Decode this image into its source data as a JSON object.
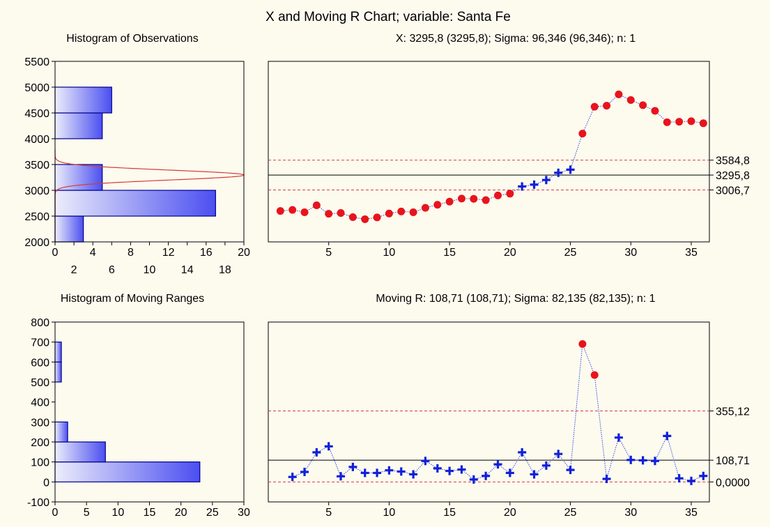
{
  "colors": {
    "background": "#fdfaee",
    "bar_fill_light": "#ecedfb",
    "bar_fill_dark": "#4b4ff0",
    "bar_stroke": "#00008b",
    "out_of_control": "#e8141c",
    "in_control": "#1020d8",
    "connector": "#3048e8",
    "control_limit": "#d04040",
    "center_line": "#000000",
    "density_curve": "#d43c3c"
  },
  "title": "X and Moving R Chart; variable:  Santa Fe",
  "chart_data": [
    {
      "type": "bar",
      "orientation": "horizontal",
      "title": "Histogram of Observations",
      "bins": [
        {
          "from": 2000,
          "to": 2500,
          "count": 3
        },
        {
          "from": 2500,
          "to": 3000,
          "count": 17
        },
        {
          "from": 3000,
          "to": 3500,
          "count": 5
        },
        {
          "from": 3500,
          "to": 4000,
          "count": 0
        },
        {
          "from": 4000,
          "to": 4500,
          "count": 5
        },
        {
          "from": 4500,
          "to": 5000,
          "count": 6
        },
        {
          "from": 5000,
          "to": 5500,
          "count": 0
        }
      ],
      "ylim": [
        2000,
        5500
      ],
      "y_ticks": [
        "2000",
        "2500",
        "3000",
        "3500",
        "4000",
        "4500",
        "5000",
        "5500"
      ],
      "xlim": [
        0,
        20
      ],
      "x_ticks_top_row": [
        "0",
        "4",
        "8",
        "12",
        "16",
        "20"
      ],
      "x_ticks_bottom_row": [
        "2",
        "6",
        "10",
        "14",
        "18"
      ],
      "density_curve": {
        "mean": 3295.8,
        "sigma": 96.346,
        "peak_count": 20
      }
    },
    {
      "type": "line",
      "title": "X: 3295,8 (3295,8); Sigma: 96,346 (96,346); n: 1",
      "xlim": [
        0,
        36.5
      ],
      "ylim": [
        2000,
        5500
      ],
      "x_ticks": [
        "5",
        "10",
        "15",
        "20",
        "25",
        "30",
        "35"
      ],
      "limits": [
        {
          "label": "3584,8",
          "value": 3584.8,
          "style": "dashed"
        },
        {
          "label": "3295,8",
          "value": 3295.8,
          "style": "solid"
        },
        {
          "label": "3006,7",
          "value": 3006.7,
          "style": "dashed"
        }
      ],
      "x": [
        1,
        2,
        3,
        4,
        5,
        6,
        7,
        8,
        9,
        10,
        11,
        12,
        13,
        14,
        15,
        16,
        17,
        18,
        19,
        20,
        21,
        22,
        23,
        24,
        25,
        26,
        27,
        28,
        29,
        30,
        31,
        32,
        33,
        34,
        35,
        36
      ],
      "values": [
        2600,
        2620,
        2575,
        2710,
        2545,
        2560,
        2480,
        2440,
        2475,
        2550,
        2590,
        2575,
        2660,
        2720,
        2780,
        2840,
        2835,
        2810,
        2900,
        2935,
        3075,
        3110,
        3200,
        3340,
        3400,
        4100,
        4620,
        4640,
        4860,
        4750,
        4650,
        4540,
        4320,
        4330,
        4340,
        4300
      ]
    },
    {
      "type": "bar",
      "orientation": "horizontal",
      "title": "Histogram of Moving Ranges",
      "bins": [
        {
          "from": 0,
          "to": 100,
          "count": 23
        },
        {
          "from": 100,
          "to": 200,
          "count": 8
        },
        {
          "from": 200,
          "to": 300,
          "count": 2
        },
        {
          "from": 300,
          "to": 400,
          "count": 0
        },
        {
          "from": 400,
          "to": 500,
          "count": 0
        },
        {
          "from": 500,
          "to": 600,
          "count": 1
        },
        {
          "from": 600,
          "to": 700,
          "count": 1
        }
      ],
      "ylim": [
        -100,
        800
      ],
      "y_ticks": [
        "-100",
        "0",
        "100",
        "200",
        "300",
        "400",
        "500",
        "600",
        "700",
        "800"
      ],
      "xlim": [
        0,
        30
      ],
      "x_ticks": [
        "0",
        "5",
        "10",
        "15",
        "20",
        "25",
        "30"
      ]
    },
    {
      "type": "line",
      "title": "Moving R: 108,71 (108,71); Sigma: 82,135 (82,135); n: 1",
      "xlim": [
        0,
        36.5
      ],
      "ylim": [
        -100,
        800
      ],
      "x_ticks": [
        "5",
        "10",
        "15",
        "20",
        "25",
        "30",
        "35"
      ],
      "limits": [
        {
          "label": "355,12",
          "value": 355.12,
          "style": "dashed"
        },
        {
          "label": "108,71",
          "value": 108.71,
          "style": "solid"
        },
        {
          "label": "0,0000",
          "value": 0,
          "style": "dashed"
        }
      ],
      "x": [
        2,
        3,
        4,
        5,
        6,
        7,
        8,
        9,
        10,
        11,
        12,
        13,
        14,
        15,
        16,
        17,
        18,
        19,
        20,
        21,
        22,
        23,
        24,
        25,
        26,
        27,
        28,
        29,
        30,
        31,
        32,
        33,
        34,
        35,
        36
      ],
      "values": [
        25,
        50,
        148,
        178,
        28,
        75,
        45,
        45,
        58,
        52,
        38,
        105,
        68,
        55,
        62,
        12,
        30,
        88,
        45,
        148,
        38,
        82,
        140,
        60,
        690,
        535,
        15,
        222,
        110,
        108,
        105,
        230,
        18,
        5,
        30
      ]
    }
  ]
}
